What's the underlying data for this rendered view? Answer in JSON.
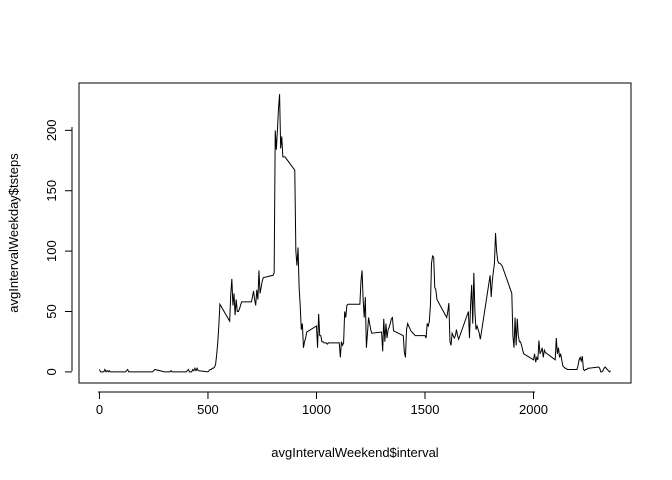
{
  "chart_data": {
    "type": "line",
    "xlabel": "avgIntervalWeekend$interval",
    "ylabel": "avgIntervalWeekday$tsteps",
    "xlim": [
      -94.2,
      2449.2
    ],
    "ylim": [
      -9.2,
      239.2
    ],
    "xticks": [
      0,
      500,
      1000,
      1500,
      2000
    ],
    "yticks": [
      0,
      50,
      100,
      150,
      200
    ],
    "color": "#000000",
    "x": [
      0,
      5,
      10,
      15,
      20,
      25,
      30,
      35,
      40,
      45,
      50,
      55,
      100,
      105,
      110,
      115,
      120,
      125,
      130,
      135,
      140,
      145,
      150,
      155,
      200,
      205,
      210,
      215,
      220,
      225,
      230,
      235,
      240,
      245,
      250,
      255,
      300,
      305,
      310,
      315,
      320,
      325,
      330,
      335,
      340,
      345,
      350,
      355,
      400,
      405,
      410,
      415,
      420,
      425,
      430,
      435,
      440,
      445,
      450,
      455,
      500,
      505,
      510,
      515,
      520,
      525,
      530,
      535,
      540,
      545,
      550,
      555,
      600,
      605,
      610,
      615,
      620,
      625,
      630,
      635,
      640,
      645,
      650,
      655,
      700,
      705,
      710,
      715,
      720,
      725,
      730,
      735,
      740,
      745,
      750,
      755,
      800,
      805,
      810,
      815,
      820,
      825,
      830,
      835,
      840,
      845,
      850,
      855,
      900,
      905,
      910,
      915,
      920,
      925,
      930,
      935,
      940,
      945,
      950,
      955,
      1000,
      1005,
      1010,
      1015,
      1020,
      1025,
      1030,
      1035,
      1040,
      1045,
      1050,
      1055,
      1100,
      1105,
      1110,
      1115,
      1120,
      1125,
      1130,
      1135,
      1140,
      1145,
      1150,
      1155,
      1200,
      1205,
      1210,
      1215,
      1220,
      1225,
      1230,
      1235,
      1240,
      1245,
      1250,
      1255,
      1300,
      1305,
      1310,
      1315,
      1320,
      1325,
      1330,
      1335,
      1340,
      1345,
      1350,
      1355,
      1400,
      1405,
      1410,
      1415,
      1420,
      1425,
      1430,
      1435,
      1440,
      1445,
      1450,
      1455,
      1500,
      1505,
      1510,
      1515,
      1520,
      1525,
      1530,
      1535,
      1540,
      1545,
      1550,
      1555,
      1600,
      1605,
      1610,
      1615,
      1620,
      1625,
      1630,
      1635,
      1640,
      1645,
      1650,
      1655,
      1700,
      1705,
      1710,
      1715,
      1720,
      1725,
      1730,
      1735,
      1740,
      1745,
      1750,
      1755,
      1800,
      1805,
      1810,
      1815,
      1820,
      1825,
      1830,
      1835,
      1840,
      1845,
      1850,
      1855,
      1900,
      1905,
      1910,
      1915,
      1920,
      1925,
      1930,
      1935,
      1940,
      1945,
      1950,
      1955,
      2000,
      2005,
      2010,
      2015,
      2020,
      2025,
      2030,
      2035,
      2040,
      2045,
      2050,
      2055,
      2100,
      2105,
      2110,
      2115,
      2120,
      2125,
      2130,
      2135,
      2140,
      2145,
      2150,
      2155,
      2200,
      2205,
      2210,
      2215,
      2220,
      2225,
      2230,
      2235,
      2240,
      2245,
      2250,
      2255,
      2300,
      2305,
      2310,
      2315,
      2320,
      2325,
      2330,
      2335,
      2340,
      2345,
      2350,
      2355
    ],
    "values": [
      2,
      0,
      0,
      0,
      0,
      2,
      0,
      1,
      0,
      1,
      0,
      0,
      0,
      0,
      0,
      0,
      0,
      1,
      2,
      0,
      0,
      0,
      0,
      0,
      0,
      0,
      0,
      0,
      0,
      0,
      0,
      0,
      0,
      0,
      1,
      2,
      0,
      0,
      0,
      0,
      0,
      0,
      1,
      0,
      0,
      0,
      0,
      0,
      0,
      1,
      2,
      0,
      0,
      0,
      2,
      1,
      3,
      1,
      3,
      1,
      0,
      1,
      2,
      2,
      3,
      3,
      4,
      6,
      14,
      24,
      38,
      56,
      42,
      64,
      77,
      55,
      65,
      47,
      60,
      50,
      50,
      52,
      55,
      58,
      58,
      62,
      67,
      60,
      55,
      68,
      60,
      84,
      65,
      70,
      75,
      78,
      80,
      82,
      200,
      184,
      200,
      218,
      230,
      185,
      195,
      178,
      178,
      178,
      167,
      100,
      88,
      103,
      70,
      55,
      35,
      40,
      20,
      25,
      28,
      33,
      38,
      20,
      48,
      30,
      30,
      25,
      25,
      24,
      24,
      24,
      23,
      24,
      24,
      24,
      12,
      25,
      22,
      24,
      50,
      45,
      55,
      56,
      56,
      56,
      56,
      75,
      84,
      60,
      45,
      62,
      20,
      32,
      45,
      40,
      35,
      32,
      33,
      17,
      44,
      25,
      40,
      28,
      35,
      37,
      40,
      44,
      45,
      34,
      30,
      16,
      12,
      35,
      40,
      38,
      36,
      34,
      33,
      32,
      31,
      30,
      30,
      28,
      40,
      38,
      42,
      55,
      90,
      96,
      95,
      70,
      68,
      60,
      45,
      50,
      57,
      25,
      22,
      32,
      30,
      28,
      30,
      35,
      30,
      27,
      50,
      28,
      55,
      72,
      40,
      82,
      50,
      35,
      38,
      35,
      32,
      27,
      80,
      62,
      75,
      83,
      90,
      115,
      100,
      92,
      90,
      90,
      89,
      88,
      65,
      30,
      20,
      45,
      22,
      44,
      30,
      25,
      25,
      22,
      18,
      15,
      10,
      15,
      8,
      12,
      10,
      26,
      15,
      17,
      20,
      12,
      18,
      16,
      10,
      28,
      15,
      20,
      12,
      15,
      10,
      5,
      4,
      3,
      3,
      2,
      2,
      5,
      10,
      12,
      9,
      13,
      2,
      1,
      2,
      2,
      3,
      3,
      4,
      3,
      0,
      0,
      1,
      3,
      4,
      3,
      2,
      1,
      0,
      1
    ]
  }
}
